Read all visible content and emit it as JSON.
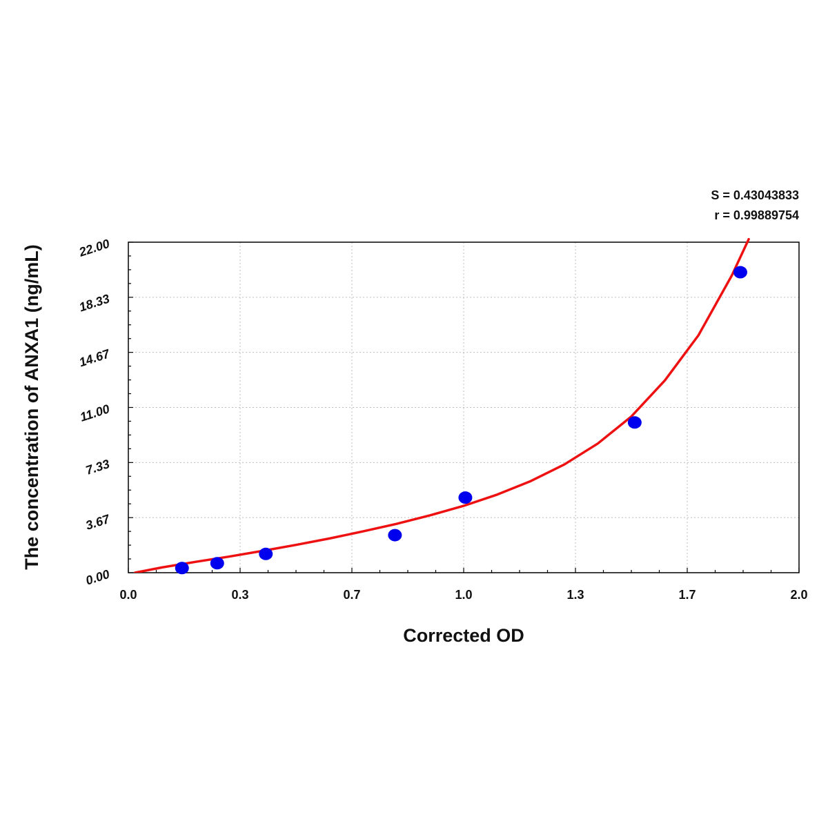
{
  "chart_data": {
    "type": "scatter",
    "title": "",
    "xlabel": "Corrected OD",
    "ylabel": "The concentration of ANXA1 (ng/mL)",
    "xlim": [
      0.0,
      2.0
    ],
    "ylim": [
      0.0,
      22.0
    ],
    "x_ticks": [
      "0.0",
      "0.3",
      "0.7",
      "1.0",
      "1.3",
      "1.7",
      "2.0"
    ],
    "y_ticks": [
      "0.00",
      "3.67",
      "7.33",
      "11.00",
      "14.67",
      "18.33",
      "22.00"
    ],
    "grid": true,
    "legend": "none",
    "annotations": {
      "s_value": "S = 0.43043833",
      "r_value": "r = 0.99889754"
    },
    "series": [
      {
        "type": "scatter",
        "color": "#0000ee",
        "x": [
          0.16,
          0.265,
          0.41,
          0.795,
          1.005,
          1.51,
          1.825
        ],
        "y": [
          0.31,
          0.63,
          1.25,
          2.5,
          5.0,
          10.0,
          20.0
        ]
      },
      {
        "type": "curve",
        "color": "#ee1111",
        "x": [
          0.02,
          0.1,
          0.2,
          0.3,
          0.4,
          0.5,
          0.6,
          0.7,
          0.8,
          0.9,
          1.0,
          1.1,
          1.2,
          1.3,
          1.4,
          1.5,
          1.6,
          1.7,
          1.8,
          1.85
        ],
        "y": [
          0.0,
          0.35,
          0.72,
          1.07,
          1.45,
          1.85,
          2.28,
          2.75,
          3.25,
          3.82,
          4.45,
          5.2,
          6.1,
          7.2,
          8.6,
          10.4,
          12.8,
          15.8,
          19.8,
          22.2
        ]
      }
    ]
  }
}
